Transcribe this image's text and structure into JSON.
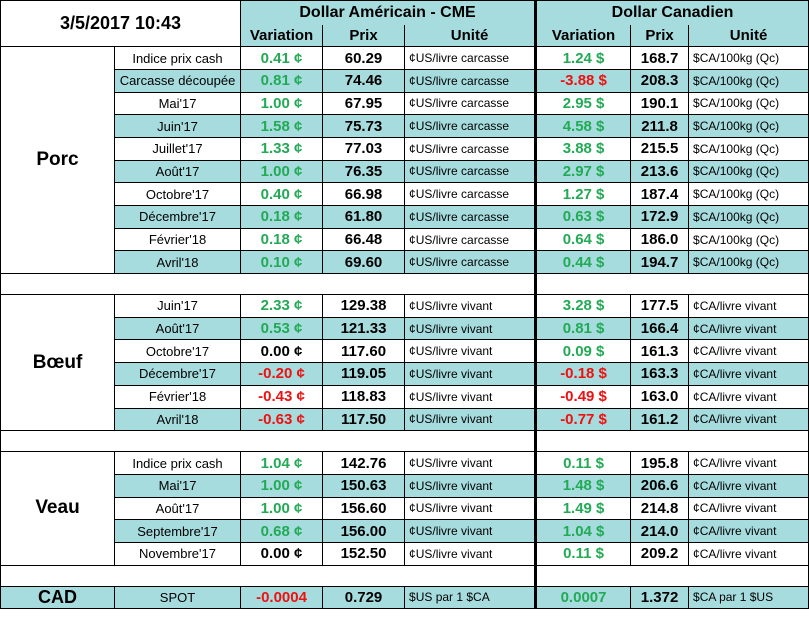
{
  "header": {
    "datetime": "3/5/2017 10:43",
    "group_us": "Dollar Américain - CME",
    "group_ca": "Dollar Canadien",
    "col_variation": "Variation",
    "col_prix": "Prix",
    "col_unite": "Unité"
  },
  "colors": {
    "green": "#22aa55",
    "red": "#ee1111",
    "teal": "#a6dcde"
  },
  "sections": [
    {
      "name": "Porc",
      "rows": [
        {
          "label": "Indice prix cash",
          "us_var": "0.41 ¢",
          "us_var_color": "green",
          "us_prix": "60.29",
          "us_unit": "¢US/livre carcasse",
          "ca_var": "1.24 $",
          "ca_var_color": "green",
          "ca_prix": "168.7",
          "ca_unit": "$CA/100kg (Qc)"
        },
        {
          "label": "Carcasse découpée",
          "us_var": "0.81 ¢",
          "us_var_color": "green",
          "us_prix": "74.46",
          "us_unit": "¢US/livre carcasse",
          "ca_var": "-3.88 $",
          "ca_var_color": "red",
          "ca_prix": "208.3",
          "ca_unit": "$CA/100kg (Qc)"
        },
        {
          "label": "Mai'17",
          "us_var": "1.00 ¢",
          "us_var_color": "green",
          "us_prix": "67.95",
          "us_unit": "¢US/livre carcasse",
          "ca_var": "2.95 $",
          "ca_var_color": "green",
          "ca_prix": "190.1",
          "ca_unit": "$CA/100kg (Qc)"
        },
        {
          "label": "Juin'17",
          "us_var": "1.58 ¢",
          "us_var_color": "green",
          "us_prix": "75.73",
          "us_unit": "¢US/livre carcasse",
          "ca_var": "4.58 $",
          "ca_var_color": "green",
          "ca_prix": "211.8",
          "ca_unit": "$CA/100kg (Qc)"
        },
        {
          "label": "Juillet'17",
          "us_var": "1.33 ¢",
          "us_var_color": "green",
          "us_prix": "77.03",
          "us_unit": "¢US/livre carcasse",
          "ca_var": "3.88 $",
          "ca_var_color": "green",
          "ca_prix": "215.5",
          "ca_unit": "$CA/100kg (Qc)"
        },
        {
          "label": "Août'17",
          "us_var": "1.00 ¢",
          "us_var_color": "green",
          "us_prix": "76.35",
          "us_unit": "¢US/livre carcasse",
          "ca_var": "2.97 $",
          "ca_var_color": "green",
          "ca_prix": "213.6",
          "ca_unit": "$CA/100kg (Qc)"
        },
        {
          "label": "Octobre'17",
          "us_var": "0.40 ¢",
          "us_var_color": "green",
          "us_prix": "66.98",
          "us_unit": "¢US/livre carcasse",
          "ca_var": "1.27 $",
          "ca_var_color": "green",
          "ca_prix": "187.4",
          "ca_unit": "$CA/100kg (Qc)"
        },
        {
          "label": "Décembre'17",
          "us_var": "0.18 ¢",
          "us_var_color": "green",
          "us_prix": "61.80",
          "us_unit": "¢US/livre carcasse",
          "ca_var": "0.63 $",
          "ca_var_color": "green",
          "ca_prix": "172.9",
          "ca_unit": "$CA/100kg (Qc)"
        },
        {
          "label": "Février'18",
          "us_var": "0.18 ¢",
          "us_var_color": "green",
          "us_prix": "66.48",
          "us_unit": "¢US/livre carcasse",
          "ca_var": "0.64 $",
          "ca_var_color": "green",
          "ca_prix": "186.0",
          "ca_unit": "$CA/100kg (Qc)"
        },
        {
          "label": "Avril'18",
          "us_var": "0.10 ¢",
          "us_var_color": "green",
          "us_prix": "69.60",
          "us_unit": "¢US/livre carcasse",
          "ca_var": "0.44 $",
          "ca_var_color": "green",
          "ca_prix": "194.7",
          "ca_unit": "$CA/100kg (Qc)"
        }
      ]
    },
    {
      "name": "Bœuf",
      "rows": [
        {
          "label": "Juin'17",
          "us_var": "2.33 ¢",
          "us_var_color": "green",
          "us_prix": "129.38",
          "us_unit": "¢US/livre vivant",
          "ca_var": "3.28 $",
          "ca_var_color": "green",
          "ca_prix": "177.5",
          "ca_unit": "¢CA/livre vivant"
        },
        {
          "label": "Août'17",
          "us_var": "0.53 ¢",
          "us_var_color": "green",
          "us_prix": "121.33",
          "us_unit": "¢US/livre vivant",
          "ca_var": "0.81 $",
          "ca_var_color": "green",
          "ca_prix": "166.4",
          "ca_unit": "¢CA/livre vivant"
        },
        {
          "label": "Octobre'17",
          "us_var": "0.00 ¢",
          "us_var_color": "black",
          "us_prix": "117.60",
          "us_unit": "¢US/livre vivant",
          "ca_var": "0.09 $",
          "ca_var_color": "green",
          "ca_prix": "161.3",
          "ca_unit": "¢CA/livre vivant"
        },
        {
          "label": "Décembre'17",
          "us_var": "-0.20 ¢",
          "us_var_color": "red",
          "us_prix": "119.05",
          "us_unit": "¢US/livre vivant",
          "ca_var": "-0.18 $",
          "ca_var_color": "red",
          "ca_prix": "163.3",
          "ca_unit": "¢CA/livre vivant"
        },
        {
          "label": "Février'18",
          "us_var": "-0.43 ¢",
          "us_var_color": "red",
          "us_prix": "118.83",
          "us_unit": "¢US/livre vivant",
          "ca_var": "-0.49 $",
          "ca_var_color": "red",
          "ca_prix": "163.0",
          "ca_unit": "¢CA/livre vivant"
        },
        {
          "label": "Avril'18",
          "us_var": "-0.63 ¢",
          "us_var_color": "red",
          "us_prix": "117.50",
          "us_unit": "¢US/livre vivant",
          "ca_var": "-0.77 $",
          "ca_var_color": "red",
          "ca_prix": "161.2",
          "ca_unit": "¢CA/livre vivant"
        }
      ]
    },
    {
      "name": "Veau",
      "rows": [
        {
          "label": "Indice prix cash",
          "us_var": "1.04 ¢",
          "us_var_color": "green",
          "us_prix": "142.76",
          "us_unit": "¢US/livre vivant",
          "ca_var": "0.11 $",
          "ca_var_color": "green",
          "ca_prix": "195.8",
          "ca_unit": "¢CA/livre vivant"
        },
        {
          "label": "Mai'17",
          "us_var": "1.00 ¢",
          "us_var_color": "green",
          "us_prix": "150.63",
          "us_unit": "¢US/livre vivant",
          "ca_var": "1.48 $",
          "ca_var_color": "green",
          "ca_prix": "206.6",
          "ca_unit": "¢CA/livre vivant"
        },
        {
          "label": "Août'17",
          "us_var": "1.00 ¢",
          "us_var_color": "green",
          "us_prix": "156.60",
          "us_unit": "¢US/livre vivant",
          "ca_var": "1.49 $",
          "ca_var_color": "green",
          "ca_prix": "214.8",
          "ca_unit": "¢CA/livre vivant"
        },
        {
          "label": "Septembre'17",
          "us_var": "0.68 ¢",
          "us_var_color": "green",
          "us_prix": "156.00",
          "us_unit": "¢US/livre vivant",
          "ca_var": "1.04 $",
          "ca_var_color": "green",
          "ca_prix": "214.0",
          "ca_unit": "¢CA/livre vivant"
        },
        {
          "label": "Novembre'17",
          "us_var": "0.00 ¢",
          "us_var_color": "black",
          "us_prix": "152.50",
          "us_unit": "¢US/livre vivant",
          "ca_var": "0.11 $",
          "ca_var_color": "green",
          "ca_prix": "209.2",
          "ca_unit": "¢CA/livre vivant"
        }
      ]
    }
  ],
  "cad": {
    "name": "CAD",
    "label": "SPOT",
    "us_var": "-0.0004",
    "us_var_color": "red",
    "us_prix": "0.729",
    "us_unit": "$US par 1 $CA",
    "ca_var": "0.0007",
    "ca_var_color": "green",
    "ca_prix": "1.372",
    "ca_unit": "$CA par 1 $US"
  }
}
